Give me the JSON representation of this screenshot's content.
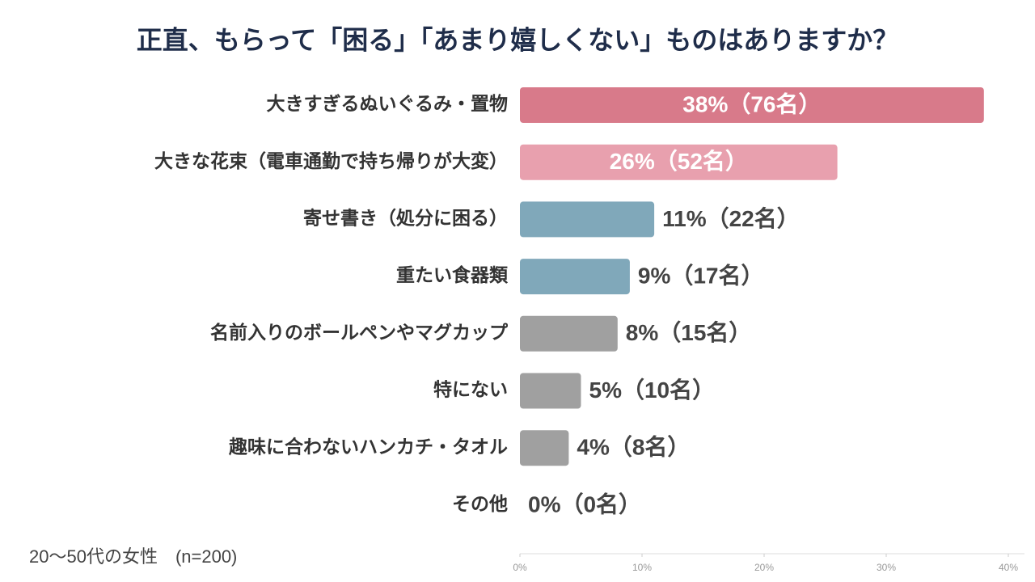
{
  "chart_data": {
    "type": "bar",
    "orientation": "horizontal",
    "title": "正直、もらって「困る」「あまり嬉しくない」ものはありますか？",
    "categories": [
      "大きすぎるぬいぐるみ・置物",
      "大きな花束（電車通勤で持ち帰りが大変）",
      "寄せ書き（処分に困る）",
      "重たい食器類",
      "名前入りのボールペンやマグカップ",
      "特にない",
      "趣味に合わないハンカチ・タオル",
      "その他"
    ],
    "values": [
      38,
      26,
      11,
      9,
      8,
      5,
      4,
      0
    ],
    "value_labels": [
      "38%（76名）",
      "26%（52名）",
      "11%（22名）",
      "9%（17名）",
      "8%（15名）",
      "5%（10名）",
      "4%（8名）",
      "0%（0名）"
    ],
    "colors": [
      "#d87a8a",
      "#e8a0ae",
      "#80a8ba",
      "#80a8ba",
      "#a0a0a0",
      "#a0a0a0",
      "#a0a0a0",
      "#a0a0a0"
    ],
    "xlim": [
      0,
      40
    ],
    "xticks": [
      {
        "value": 0,
        "label": "0%"
      },
      {
        "value": 10,
        "label": "10%"
      },
      {
        "value": 20,
        "label": "20%"
      },
      {
        "value": 30,
        "label": "30%"
      },
      {
        "value": 40,
        "label": "40%"
      }
    ],
    "note": "20〜50代の女性　(n=200)"
  }
}
